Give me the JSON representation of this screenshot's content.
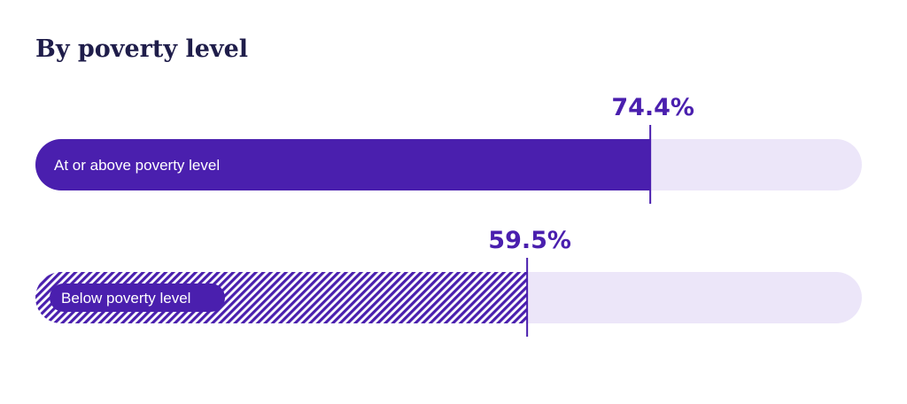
{
  "title": "By poverty level",
  "colors": {
    "bar_fill": "#4a1fae",
    "track": "#ece6f9",
    "value_text": "#4a1fae",
    "title_text": "#1f1d4a",
    "hatch_bg": "#ffffff"
  },
  "chart_data": {
    "type": "bar",
    "orientation": "horizontal",
    "xlim": [
      0,
      100
    ],
    "unit": "%",
    "categories": [
      "At or above poverty level",
      "Below poverty level"
    ],
    "values": [
      74.4,
      59.5
    ],
    "value_labels": [
      "74.4%",
      "59.5%"
    ],
    "fill_styles": [
      "solid",
      "hatched"
    ]
  }
}
